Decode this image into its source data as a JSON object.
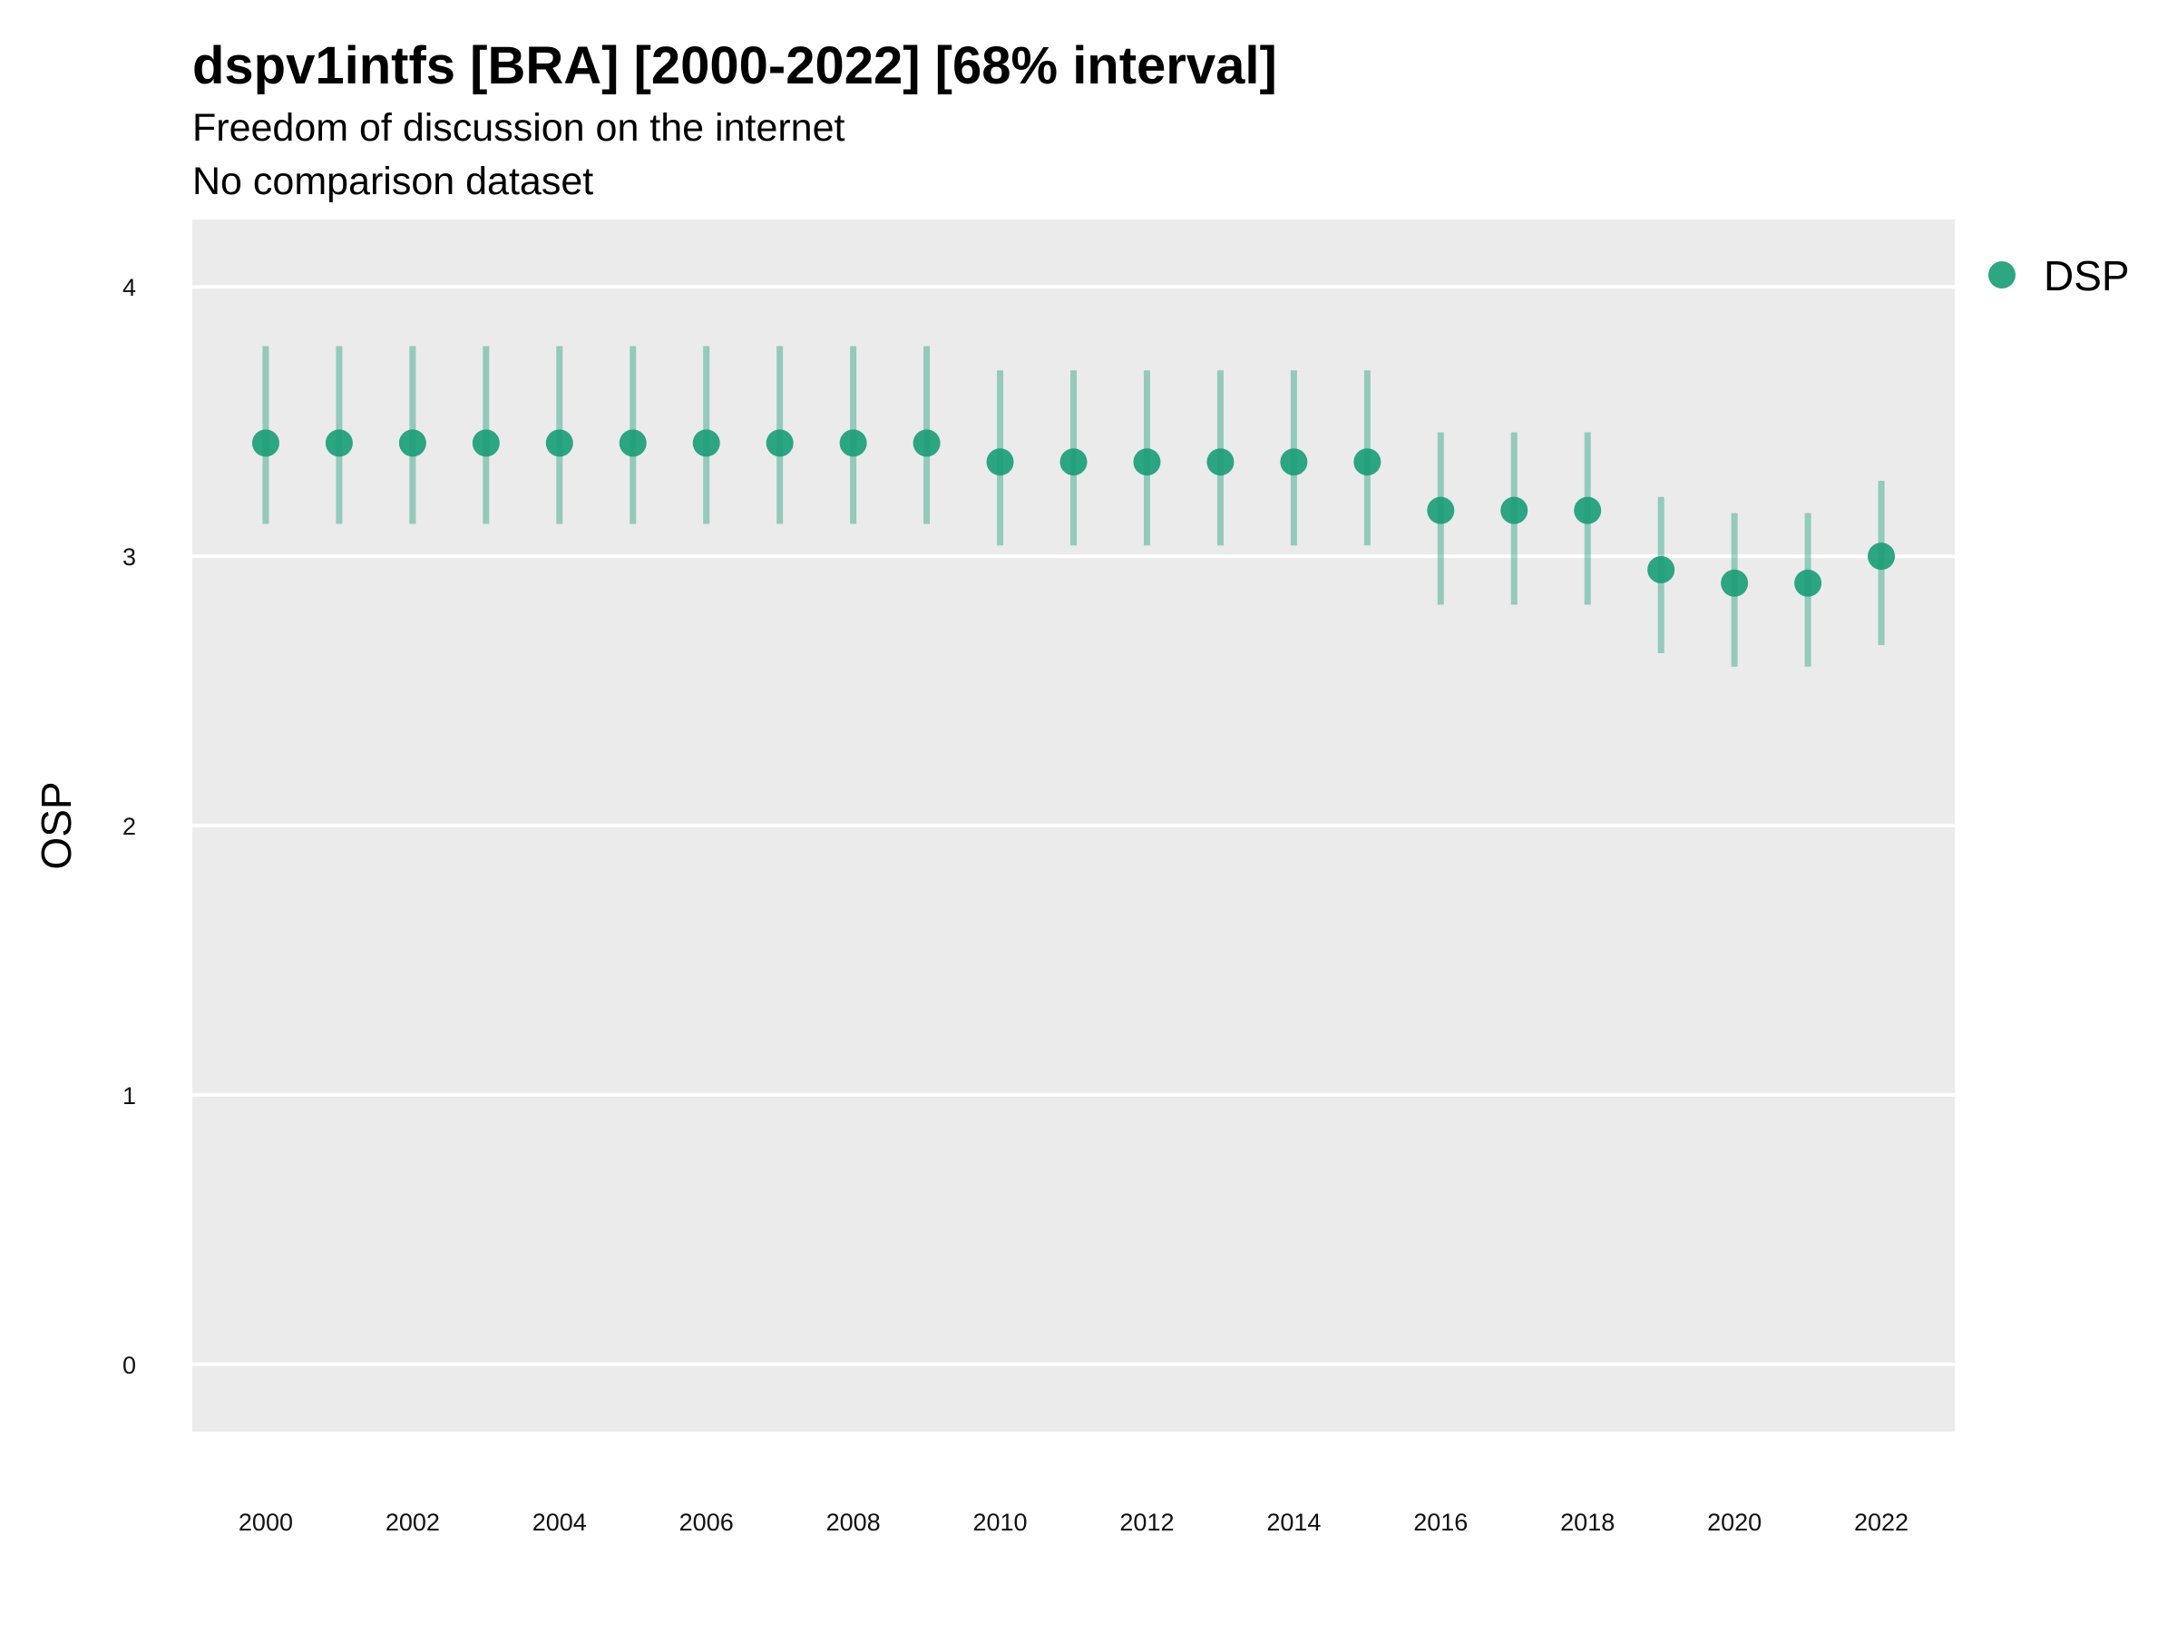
{
  "chart_data": {
    "type": "scatter",
    "title": "dspv1intfs [BRA] [2000-2022] [68% interval]",
    "subtitle": "Freedom of discussion on the internet",
    "caption_line2": "No comparison dataset",
    "xlabel": "",
    "ylabel": "OSP",
    "ylim": [
      -0.25,
      4.25
    ],
    "xlim": [
      1999,
      2023
    ],
    "yticks": [
      "0",
      "1",
      "2",
      "3",
      "4"
    ],
    "xticks": [
      "2000",
      "2002",
      "2004",
      "2006",
      "2008",
      "2010",
      "2012",
      "2014",
      "2016",
      "2018",
      "2020",
      "2022"
    ],
    "grid": true,
    "legend_position": "right",
    "colors": {
      "panel": "#ebebeb",
      "grid": "#ffffff",
      "series": "#1b9e77"
    },
    "series": [
      {
        "name": "DSP",
        "x": [
          2000,
          2001,
          2002,
          2003,
          2004,
          2005,
          2006,
          2007,
          2008,
          2009,
          2010,
          2011,
          2012,
          2013,
          2014,
          2015,
          2016,
          2017,
          2018,
          2019,
          2020,
          2021,
          2022
        ],
        "y": [
          3.42,
          3.42,
          3.42,
          3.42,
          3.42,
          3.42,
          3.42,
          3.42,
          3.42,
          3.42,
          3.35,
          3.35,
          3.35,
          3.35,
          3.35,
          3.35,
          3.17,
          3.17,
          3.17,
          2.95,
          2.9,
          2.9,
          3.0
        ],
        "lower": [
          3.12,
          3.12,
          3.12,
          3.12,
          3.12,
          3.12,
          3.12,
          3.12,
          3.12,
          3.12,
          3.04,
          3.04,
          3.04,
          3.04,
          3.04,
          3.04,
          2.82,
          2.82,
          2.82,
          2.64,
          2.59,
          2.59,
          2.67
        ],
        "upper": [
          3.78,
          3.78,
          3.78,
          3.78,
          3.78,
          3.78,
          3.78,
          3.78,
          3.78,
          3.78,
          3.69,
          3.69,
          3.69,
          3.69,
          3.69,
          3.69,
          3.46,
          3.46,
          3.46,
          3.22,
          3.16,
          3.16,
          3.28
        ]
      }
    ]
  }
}
